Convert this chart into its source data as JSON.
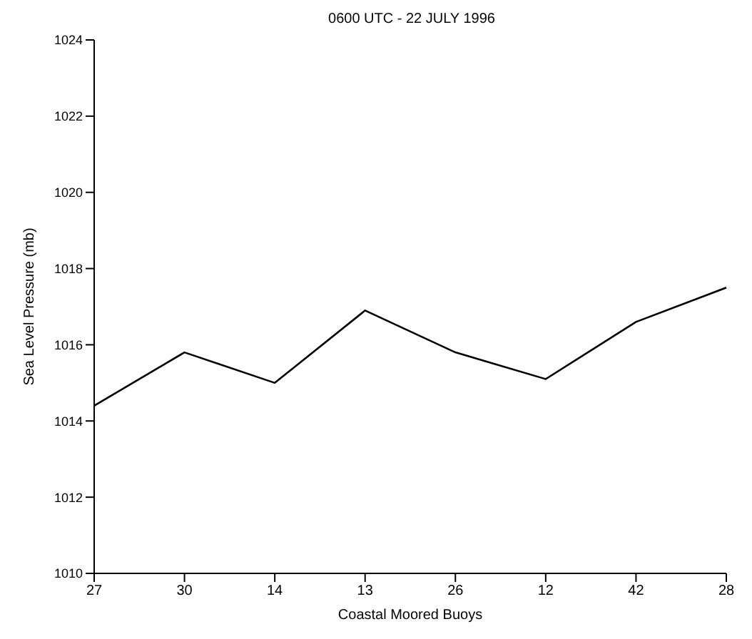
{
  "chart_data": {
    "type": "line",
    "title": "0600 UTC - 22 JULY 1996",
    "xlabel": "Coastal Moored Buoys",
    "ylabel": "Sea Level Pressure (mb)",
    "categories": [
      "27",
      "30",
      "14",
      "13",
      "26",
      "12",
      "42",
      "28"
    ],
    "series": [
      {
        "color": "#000000",
        "values": [
          1014.4,
          1015.8,
          1015.0,
          1016.9,
          1015.8,
          1015.1,
          1016.6,
          1017.5
        ]
      }
    ],
    "ylim": [
      1010,
      1024
    ],
    "yticks": [
      1010,
      1012,
      1014,
      1016,
      1018,
      1020,
      1022,
      1024
    ],
    "grid": false,
    "legend": false,
    "marker": "none",
    "line_style": "solid"
  }
}
